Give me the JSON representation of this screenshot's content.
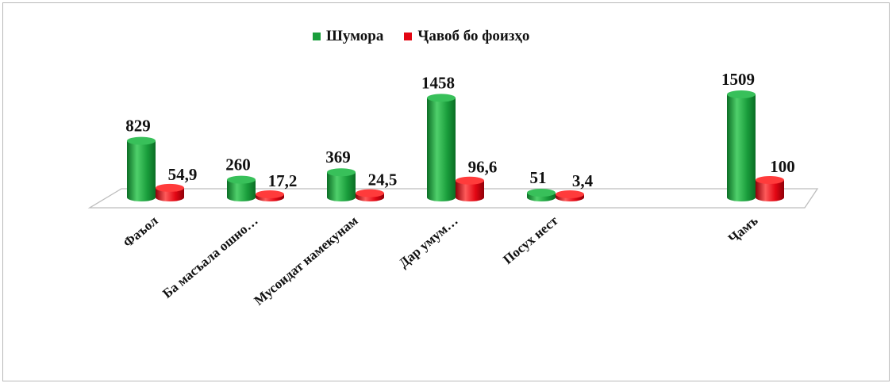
{
  "chart_data": {
    "type": "bar",
    "style": "3d-cylinder",
    "categories": [
      "Фаъол",
      "Ба масъала ошно…",
      "Мусоидат намекунам",
      "Дар умум…",
      "Посух нест",
      "",
      "Ҷамъ"
    ],
    "series": [
      {
        "name": "Шумора",
        "color": "#1a9e3c",
        "values": [
          829,
          260,
          369,
          1458,
          51,
          null,
          1509
        ],
        "labels": [
          "829",
          "260",
          "369",
          "1458",
          "51",
          "",
          "1509"
        ]
      },
      {
        "name": "Ҷавоб бо фоизҳо",
        "color": "#e30613",
        "values": [
          54.9,
          17.2,
          24.5,
          96.6,
          3.4,
          null,
          100
        ],
        "labels": [
          "54,9",
          "17,2",
          "24,5",
          "96,6",
          "3,4",
          "",
          "100"
        ]
      }
    ],
    "legend_position": "top",
    "grid": false,
    "ylim": [
      0,
      1509
    ]
  }
}
